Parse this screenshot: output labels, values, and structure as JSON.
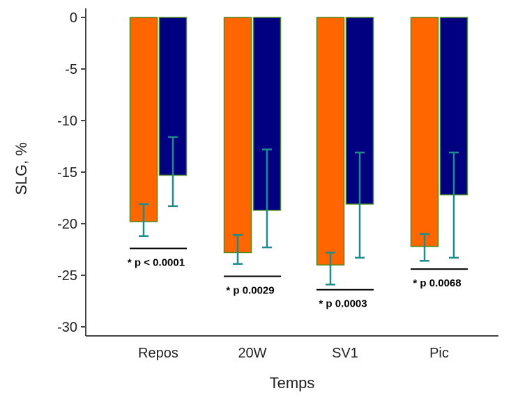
{
  "chart_data": {
    "type": "bar",
    "xlabel": "Temps",
    "ylabel": "SLG, %",
    "ylim": [
      -30,
      0
    ],
    "yticks": [
      0,
      -5,
      -10,
      -15,
      -20,
      -25,
      -30
    ],
    "categories": [
      "Repos",
      "20W",
      "SV1",
      "Pic"
    ],
    "series": [
      {
        "color": "#FF6600",
        "values": [
          -19.8,
          -22.8,
          -24.0,
          -22.2
        ],
        "error_low": [
          -21.2,
          -23.9,
          -25.9,
          -23.6
        ],
        "error_high": [
          -18.1,
          -21.1,
          -22.8,
          -21.0
        ]
      },
      {
        "color": "#000080",
        "values": [
          -15.3,
          -18.7,
          -18.1,
          -17.2
        ],
        "error_low": [
          -18.3,
          -22.3,
          -23.3,
          -23.3
        ],
        "error_high": [
          -11.6,
          -12.8,
          -13.1,
          -13.1
        ]
      }
    ],
    "annotations": [
      {
        "category": "Repos",
        "text": "* p < 0.0001",
        "y": -22.4
      },
      {
        "category": "20W",
        "text": "* p 0.0029",
        "y": -25.1
      },
      {
        "category": "SV1",
        "text": "* p 0.0003",
        "y": -26.4
      },
      {
        "category": "Pic",
        "text": "* p 0.0068",
        "y": -24.4
      }
    ],
    "bar_border_color": "#4A8A1E",
    "error_bar_color": "#1E8C8C",
    "grid": false
  }
}
